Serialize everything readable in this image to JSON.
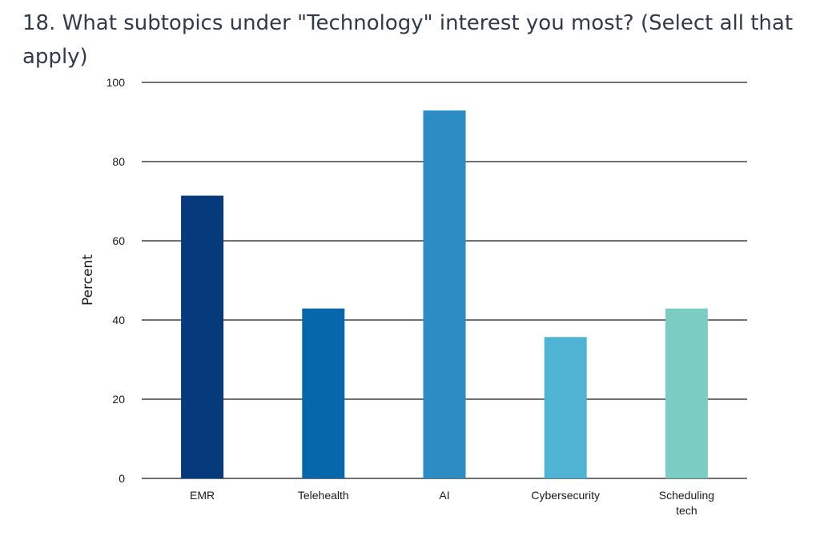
{
  "chart_data": {
    "type": "bar",
    "title": "18. What subtopics under \"Technology\" interest you most? (Select all that apply)",
    "xlabel": "",
    "ylabel": "Percent",
    "ylim": [
      0,
      100
    ],
    "yticks": [
      0,
      20,
      40,
      60,
      80,
      100
    ],
    "grid": true,
    "categories": [
      [
        "EMR"
      ],
      [
        "Telehealth"
      ],
      [
        "AI"
      ],
      [
        "Cybersecurity"
      ],
      [
        "Scheduling",
        "tech"
      ]
    ],
    "values": [
      71.4,
      42.9,
      92.9,
      35.7,
      42.9
    ],
    "colors": [
      "#063a7c",
      "#0767ab",
      "#2b8dc3",
      "#4fb3d3",
      "#7bcdc4"
    ]
  }
}
